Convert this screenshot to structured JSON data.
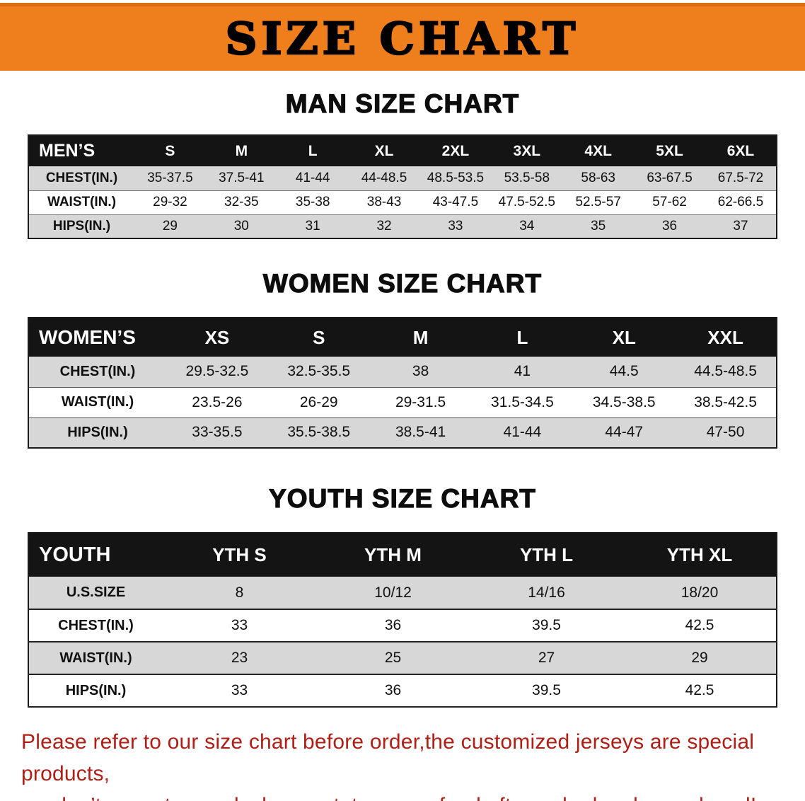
{
  "banner": {
    "title": "SIZE CHART"
  },
  "sections": [
    {
      "id": "men",
      "heading": "MAN SIZE CHART",
      "table": {
        "header": [
          "MEN’S",
          "S",
          "M",
          "L",
          "XL",
          "2XL",
          "3XL",
          "4XL",
          "5XL",
          "6XL"
        ],
        "rows": [
          [
            "CHEST(IN.)",
            "35-37.5",
            "37.5-41",
            "41-44",
            "44-48.5",
            "48.5-53.5",
            "53.5-58",
            "58-63",
            "63-67.5",
            "67.5-72"
          ],
          [
            "WAIST(IN.)",
            "29-32",
            "32-35",
            "35-38",
            "38-43",
            "43-47.5",
            "47.5-52.5",
            "52.5-57",
            "57-62",
            "62-66.5"
          ],
          [
            "HIPS(IN.)",
            "29",
            "30",
            "31",
            "32",
            "33",
            "34",
            "35",
            "36",
            "37"
          ]
        ]
      }
    },
    {
      "id": "women",
      "heading": "WOMEN SIZE CHART",
      "table": {
        "header": [
          "WOMEN’S",
          "XS",
          "S",
          "M",
          "L",
          "XL",
          "XXL"
        ],
        "rows": [
          [
            "CHEST(IN.)",
            "29.5-32.5",
            "32.5-35.5",
            "38",
            "41",
            "44.5",
            "44.5-48.5"
          ],
          [
            "WAIST(IN.)",
            "23.5-26",
            "26-29",
            "29-31.5",
            "31.5-34.5",
            "34.5-38.5",
            "38.5-42.5"
          ],
          [
            "HIPS(IN.)",
            "33-35.5",
            "35.5-38.5",
            "38.5-41",
            "41-44",
            "44-47",
            "47-50"
          ]
        ]
      }
    },
    {
      "id": "youth",
      "heading": "YOUTH SIZE CHART",
      "table": {
        "header": [
          "YOUTH",
          "YTH S",
          "YTH M",
          "YTH L",
          "YTH XL"
        ],
        "rows": [
          [
            "U.S.SIZE",
            "8",
            "10/12",
            "14/16",
            "18/20"
          ],
          [
            "CHEST(IN.)",
            "33",
            "36",
            "39.5",
            "42.5"
          ],
          [
            "WAIST(IN.)",
            "23",
            "25",
            "27",
            "29"
          ],
          [
            "HIPS(IN.)",
            "33",
            "36",
            "39.5",
            "42.5"
          ]
        ]
      }
    }
  ],
  "notice": {
    "line1": "Please refer to our size chart before order,the customized jerseys are special products,",
    "line2": "we don’t accept cancel, change, teturn or refund after order has been placed!"
  },
  "colors": {
    "banner_orange": "#ef7e1d",
    "table_header_black": "#141414",
    "row_gray": "#d7d7d7",
    "notice_red": "#b01f16"
  }
}
